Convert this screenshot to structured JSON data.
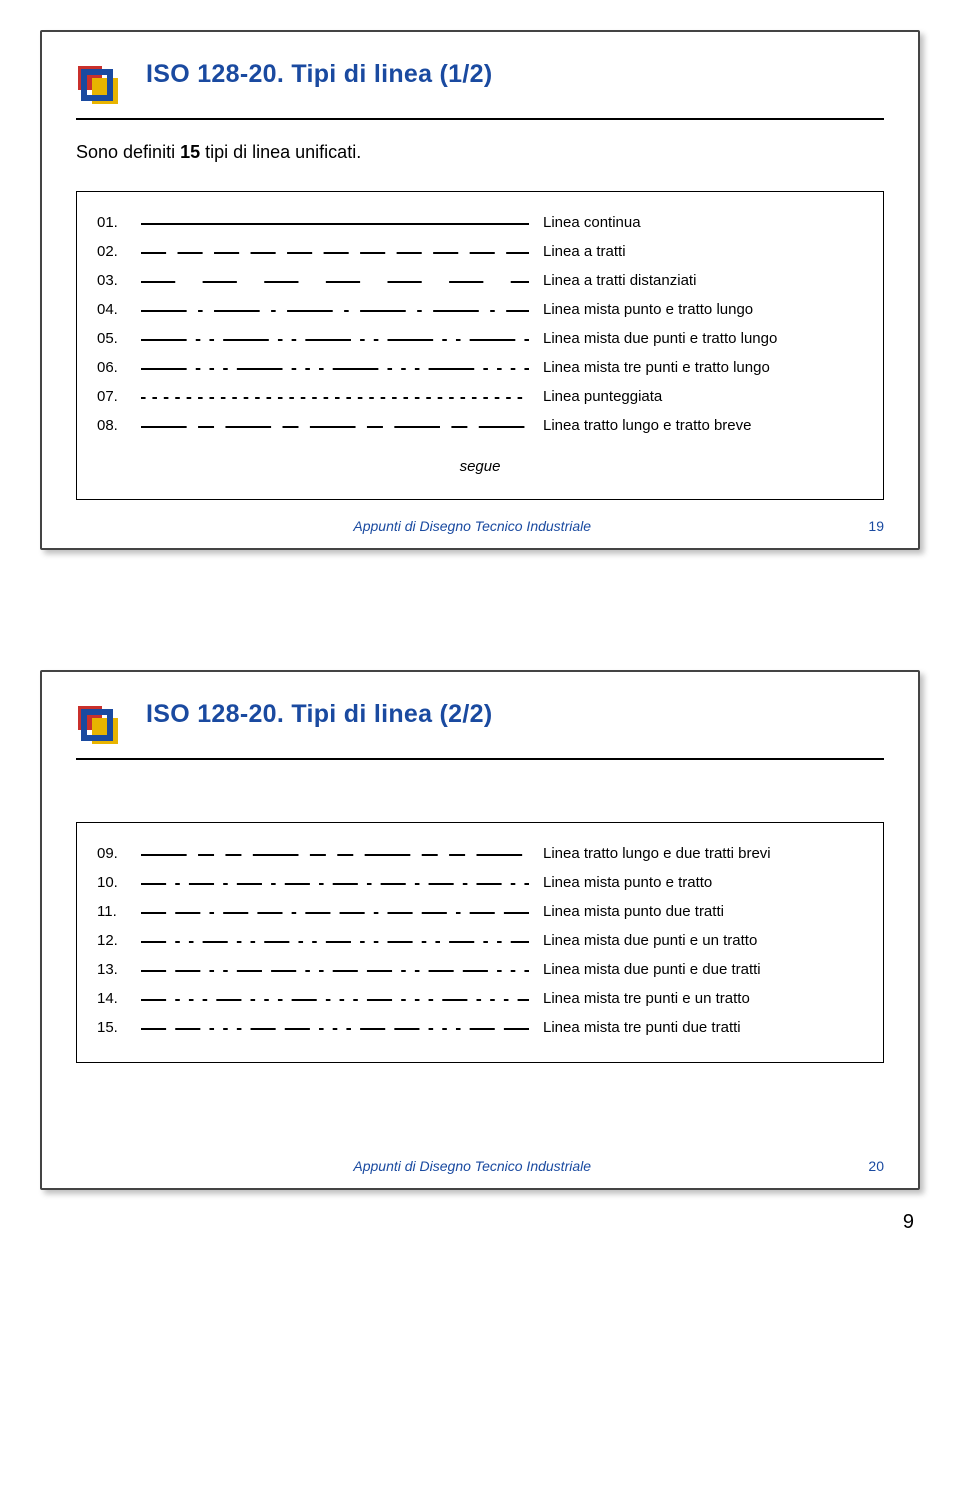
{
  "slide1": {
    "title": "ISO 128-20. Tipi di linea (1/2)",
    "subtitle_pre": "Sono definiti ",
    "subtitle_bold": "15",
    "subtitle_post": " tipi di linea unificati.",
    "segue": "segue",
    "footer_text": "Appunti di Disegno Tecnico Industriale",
    "footer_page": "19",
    "rows": [
      {
        "num": "01.",
        "desc": "Linea continua",
        "dash": "none"
      },
      {
        "num": "02.",
        "desc": "Linea a tratti",
        "dash": "22 10"
      },
      {
        "num": "03.",
        "desc": "Linea a tratti distanziati",
        "dash": "30 24"
      },
      {
        "num": "04.",
        "desc": "Linea mista punto e tratto lungo",
        "dash": "40 10 4 10"
      },
      {
        "num": "05.",
        "desc": "Linea mista due punti e tratto lungo",
        "dash": "40 8 4 8 4 8"
      },
      {
        "num": "06.",
        "desc": "Linea mista tre punti e tratto lungo",
        "dash": "40 8 4 8 4 8 4 8"
      },
      {
        "num": "07.",
        "desc": "Linea punteggiata",
        "dash": "4 6"
      },
      {
        "num": "08.",
        "desc": "Linea tratto lungo e tratto breve",
        "dash": "40 10 14 10"
      }
    ]
  },
  "slide2": {
    "title": "ISO 128-20. Tipi di linea (2/2)",
    "footer_text": "Appunti di Disegno Tecnico Industriale",
    "footer_page": "20",
    "rows": [
      {
        "num": "09.",
        "desc": "Linea tratto lungo e due tratti brevi",
        "dash": "40 10 14 10 14 10"
      },
      {
        "num": "10.",
        "desc": "Linea mista punto e tratto",
        "dash": "22 8 4 8"
      },
      {
        "num": "11.",
        "desc": "Linea mista punto due tratti",
        "dash": "22 8 22 8 4 8"
      },
      {
        "num": "12.",
        "desc": "Linea mista due punti e un tratto",
        "dash": "22 8 4 8 4 8"
      },
      {
        "num": "13.",
        "desc": "Linea mista due punti e due tratti",
        "dash": "22 8 22 8 4 8 4 8"
      },
      {
        "num": "14.",
        "desc": "Linea mista tre punti e un tratto",
        "dash": "22 8 4 8 4 8 4 8"
      },
      {
        "num": "15.",
        "desc": "Linea mista tre punti due tratti",
        "dash": "22 8 22 8 4 8 4 8 4 8"
      }
    ]
  },
  "sheet_num": "9",
  "colors": {
    "title": "#1a4aa0",
    "text": "#000000",
    "border": "#000000",
    "slide_border": "#444444",
    "logo_red": "#c9302c",
    "logo_yellow": "#e8b400",
    "logo_blue": "#1a4aa0"
  }
}
